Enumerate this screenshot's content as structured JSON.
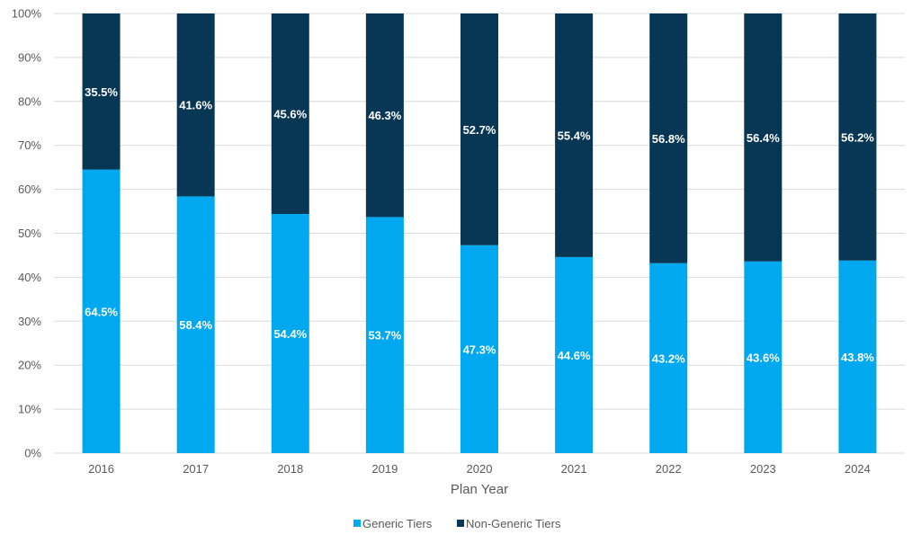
{
  "chart_data": {
    "type": "bar",
    "stacked": true,
    "percent_stacked": true,
    "title": "",
    "xlabel": "Plan Year",
    "ylabel": "",
    "ylim": [
      0,
      100
    ],
    "y_ticks": [
      "0%",
      "10%",
      "20%",
      "30%",
      "40%",
      "50%",
      "60%",
      "70%",
      "80%",
      "90%",
      "100%"
    ],
    "grid": true,
    "legend_position": "bottom",
    "categories": [
      "2016",
      "2017",
      "2018",
      "2019",
      "2020",
      "2021",
      "2022",
      "2023",
      "2024"
    ],
    "series": [
      {
        "name": "Generic Tiers",
        "color": "#00a8f0",
        "values": [
          64.5,
          58.4,
          54.4,
          53.7,
          47.3,
          44.6,
          43.2,
          43.6,
          43.8
        ],
        "labels": [
          "64.5%",
          "58.4%",
          "54.4%",
          "53.7%",
          "47.3%",
          "44.6%",
          "43.2%",
          "43.6%",
          "43.8%"
        ]
      },
      {
        "name": "Non-Generic Tiers",
        "color": "#083755",
        "values": [
          35.5,
          41.6,
          45.6,
          46.3,
          52.7,
          55.4,
          56.8,
          56.4,
          56.2
        ],
        "labels": [
          "35.5%",
          "41.6%",
          "45.6%",
          "46.3%",
          "52.7%",
          "55.4%",
          "56.8%",
          "56.4%",
          "56.2%"
        ]
      }
    ]
  }
}
